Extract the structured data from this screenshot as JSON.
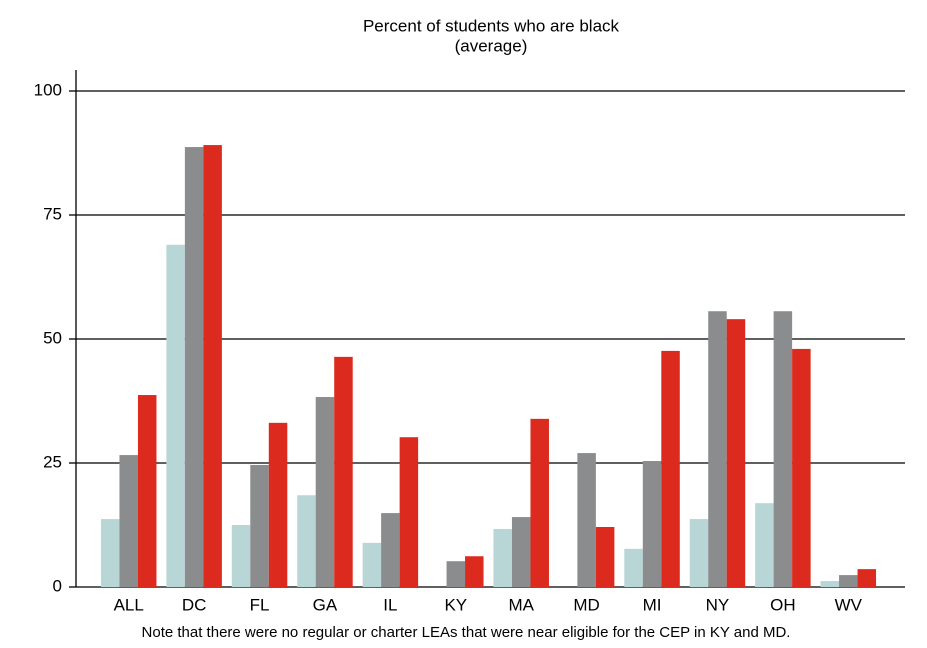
{
  "chart_data": {
    "type": "bar",
    "title": "Percent of students who are black",
    "subtitle": "(average)",
    "note": "Note that there were no regular or charter LEAs that were near eligible for the CEP in KY and MD.",
    "categories": [
      "ALL",
      "DC",
      "FL",
      "GA",
      "IL",
      "KY",
      "MA",
      "MD",
      "MI",
      "NY",
      "OH",
      "WV"
    ],
    "series": [
      {
        "color": "#b9d6d7",
        "values": [
          13.7,
          69,
          12.5,
          18.5,
          8.9,
          null,
          11.7,
          null,
          7.7,
          13.7,
          16.9,
          1.2
        ]
      },
      {
        "color": "#8a8c8e",
        "values": [
          26.6,
          88.7,
          24.6,
          38.3,
          14.9,
          5.2,
          14.1,
          27,
          25.4,
          55.6,
          55.6,
          2.4
        ]
      },
      {
        "color": "#dc2a1e",
        "values": [
          38.7,
          89.1,
          33.1,
          46.4,
          30.2,
          6.2,
          33.9,
          12.1,
          47.6,
          54.0,
          48.0,
          3.6
        ]
      }
    ],
    "ylim": [
      0,
      104
    ],
    "yticks": [
      0,
      25,
      50,
      75,
      100
    ],
    "grid": true
  }
}
